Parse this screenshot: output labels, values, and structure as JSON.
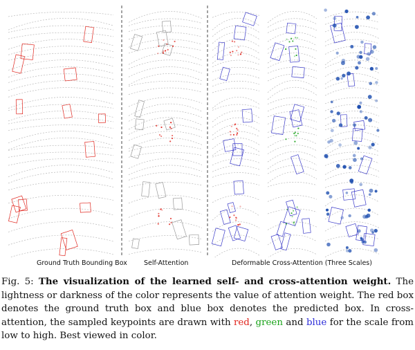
{
  "figure": {
    "column_labels": {
      "ground_truth": "Ground Truth Bounding Box",
      "self_attention": "Self-Attention",
      "deformable": "Deformable Cross-Attention (Three Scales)"
    }
  },
  "caption": {
    "fig_label": "Fig. 5:",
    "title": "The visualization of the learned self- and cross-attention weight.",
    "text_1": "The lightness or darkness of the color represents the value of attention weight. The red box denotes the ground truth box and blue box denotes the predicted box. In cross-attention, the sampled keypoints are drawn with",
    "red_word": "red",
    "sep_1": ",",
    "green_word": "green",
    "sep_2": "and",
    "blue_word": "blue",
    "text_2": "for the scale from low to high. Best viewed in color."
  },
  "colors": {
    "gt_box": "#e0261e",
    "pred_box": "#3a3ac8",
    "low_scale": "#e0261e",
    "mid_scale": "#1aa31a",
    "high_scale": "#1f4fb0"
  }
}
